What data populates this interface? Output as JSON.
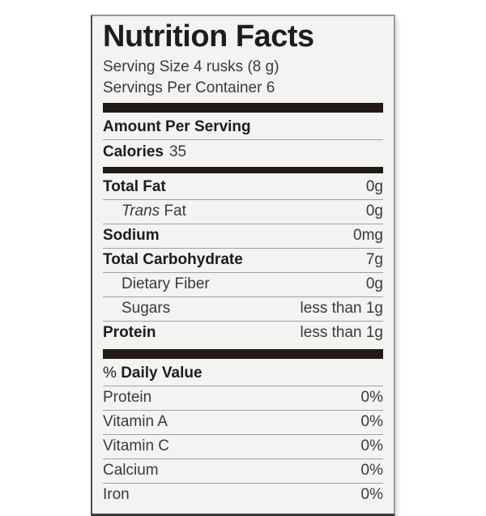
{
  "label": {
    "title": "Nutrition Facts",
    "serving_size": "Serving Size 4 rusks (8 g)",
    "servings_per_container": "Servings Per Container 6",
    "amount_per_serving": "Amount Per Serving",
    "calories": {
      "name": "Calories",
      "value": "35"
    },
    "nutrient_rows": [
      {
        "name": "Total Fat",
        "value": "0g",
        "bold": true
      },
      {
        "name": "Fat",
        "italic_prefix": "Trans",
        "value": "0g",
        "indent": true
      },
      {
        "name": "Sodium",
        "value": "0mg",
        "bold": true
      },
      {
        "name": "Total Carbohydrate",
        "value": "7g",
        "bold": true
      },
      {
        "name": "Dietary Fiber",
        "value": "0g",
        "indent": true
      },
      {
        "name": "Sugars",
        "value": "less than 1g",
        "indent": true
      },
      {
        "name": "Protein",
        "value": "less than 1g",
        "bold": true
      }
    ],
    "daily_value_header": {
      "percent_sign": "%",
      "text": "Daily Value"
    },
    "daily_value_rows": [
      {
        "name": "Protein",
        "value": "0%"
      },
      {
        "name": "Vitamin A",
        "value": "0%"
      },
      {
        "name": "Vitamin C",
        "value": "0%"
      },
      {
        "name": "Calcium",
        "value": "0%"
      },
      {
        "name": "Iron",
        "value": "0%"
      }
    ],
    "colors": {
      "label_background": "#f3f3f1",
      "bar": "#201b16",
      "text_primary": "#1d1d1d",
      "text_secondary": "#3a3a3a",
      "divider": "#a0a0a0"
    }
  }
}
